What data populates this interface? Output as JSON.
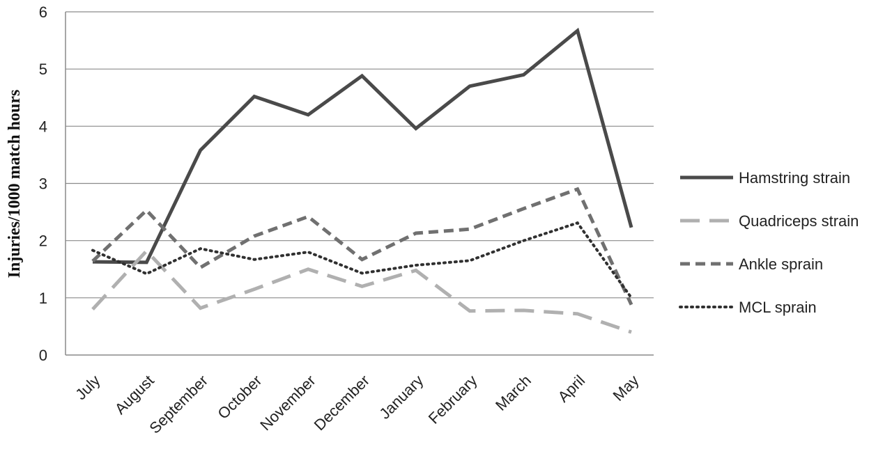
{
  "chart_data": {
    "type": "line",
    "title": "",
    "xlabel": "",
    "ylabel": "Injuries/1000  match hours",
    "categories": [
      "July",
      "August",
      "September",
      "October",
      "November",
      "December",
      "January",
      "February",
      "March",
      "April",
      "May"
    ],
    "ylim": [
      0,
      6
    ],
    "yticks": [
      "0",
      "1",
      "2",
      "3",
      "4",
      "5",
      "6"
    ],
    "grid": "horizontal",
    "legend_position": "right",
    "series": [
      {
        "name": "Hamstring strain",
        "values": [
          1.63,
          1.62,
          3.58,
          4.52,
          4.2,
          4.88,
          3.96,
          4.7,
          4.9,
          5.67,
          2.23
        ],
        "color": "#4a4a4a",
        "style": "solid"
      },
      {
        "name": "Quadriceps strain",
        "values": [
          0.8,
          1.82,
          0.82,
          1.15,
          1.5,
          1.2,
          1.48,
          0.77,
          0.78,
          0.72,
          0.4
        ],
        "color": "#b0b0b0",
        "style": "long-dash"
      },
      {
        "name": "Ankle sprain",
        "values": [
          1.64,
          2.53,
          1.53,
          2.08,
          2.42,
          1.67,
          2.13,
          2.2,
          2.56,
          2.9,
          0.88
        ],
        "color": "#707070",
        "style": "dash"
      },
      {
        "name": "MCL sprain",
        "values": [
          1.83,
          1.42,
          1.86,
          1.67,
          1.8,
          1.43,
          1.57,
          1.65,
          2.0,
          2.31,
          1.0
        ],
        "color": "#303030",
        "style": "dot"
      }
    ]
  }
}
